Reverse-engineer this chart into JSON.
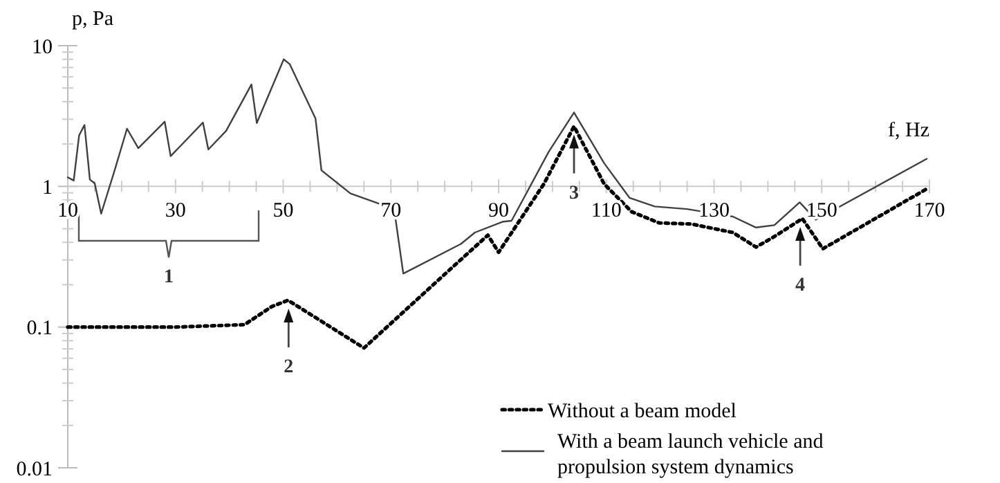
{
  "chart_data": {
    "type": "line",
    "xlabel": "f, Hz",
    "ylabel": "p, Pa",
    "log": "y",
    "xlim": [
      10,
      170
    ],
    "xticks": [
      10,
      30,
      50,
      70,
      90,
      110,
      130,
      150,
      170
    ],
    "ylim": [
      0.01,
      10
    ],
    "yticks": [
      0.01,
      0.1,
      1,
      10
    ],
    "grid": false,
    "legend": "bottom right",
    "marker": "none",
    "series": [
      {
        "name": "Without a beam model",
        "color": "#000000",
        "line_style": "dotted",
        "x": [
          10,
          20,
          30,
          42.8,
          47.9,
          50.9,
          65,
          79.6,
          88,
          90,
          98.4,
          104,
          109.6,
          114.7,
          119.8,
          125.8,
          133.5,
          137.8,
          141.2,
          146.4,
          150.2,
          169.5
        ],
        "values": [
          0.1,
          0.1,
          0.1,
          0.104,
          0.14,
          0.155,
          0.071,
          0.23,
          0.45,
          0.34,
          1.04,
          2.67,
          1.04,
          0.66,
          0.55,
          0.54,
          0.47,
          0.37,
          0.44,
          0.59,
          0.36,
          0.96
        ]
      },
      {
        "name": "With a beam launch vehicle and propulsion system dynamics",
        "color": "#404040",
        "line_style": "solid",
        "x": [
          10,
          11.1,
          12.1,
          13.1,
          14.1,
          15,
          16.2,
          18.7,
          21,
          23.1,
          28,
          29.1,
          35.1,
          36.1,
          39.4,
          44.1,
          45.1,
          50.1,
          51.2,
          56,
          57.1,
          62.5,
          70.6,
          72.3,
          83,
          85.6,
          90.7,
          92.4,
          99.3,
          104,
          109.6,
          114.3,
          119,
          125,
          133.5,
          137.8,
          141.2,
          145.9,
          148.9,
          169.5
        ],
        "values": [
          1.16,
          1.1,
          2.3,
          2.73,
          1.12,
          1.05,
          0.64,
          1.3,
          2.57,
          1.87,
          2.88,
          1.64,
          2.84,
          1.83,
          2.48,
          5.3,
          2.82,
          8,
          7.4,
          3.04,
          1.3,
          0.89,
          0.69,
          0.24,
          0.39,
          0.47,
          0.56,
          0.57,
          1.76,
          3.35,
          1.46,
          0.83,
          0.72,
          0.69,
          0.61,
          0.51,
          0.53,
          0.77,
          0.58,
          1.57
        ]
      }
    ],
    "annotations": [
      "1",
      {
        "text": "2",
        "x": 51,
        "y": 0.155
      },
      {
        "text": "3",
        "x": 104,
        "y": 2.67
      },
      {
        "text": "4",
        "x": 146,
        "y": 0.59
      }
    ]
  }
}
